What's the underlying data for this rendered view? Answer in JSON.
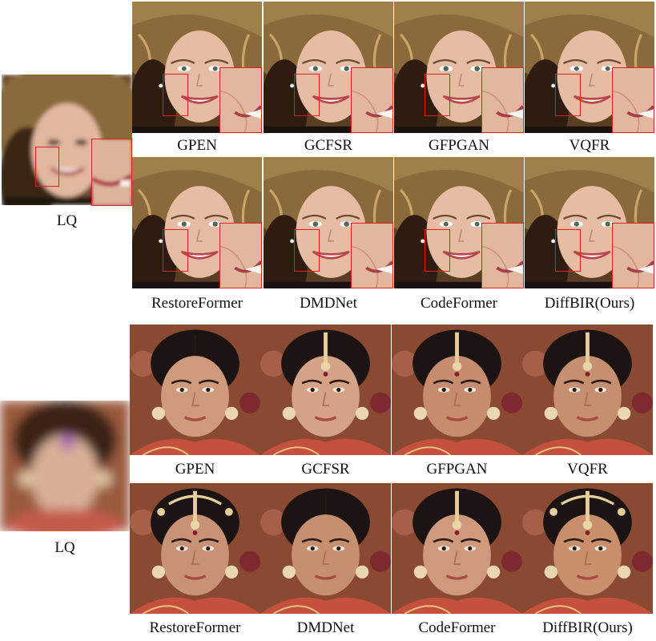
{
  "figure1": {
    "lq_label": "LQ",
    "methods_row1": [
      "GPEN",
      "GCFSR",
      "GFPGAN",
      "VQFR"
    ],
    "methods_row2": [
      "RestoreFormer",
      "DMDNet",
      "CodeFormer",
      "DiffBIR(Ours)"
    ]
  },
  "figure2": {
    "lq_label": "LQ",
    "methods_row1": [
      "GPEN",
      "GCFSR",
      "GFPGAN",
      "VQFR"
    ],
    "methods_row2": [
      "RestoreFormer",
      "DMDNet",
      "CodeFormer",
      "DiffBIR(Ours)"
    ]
  },
  "colors": {
    "zoom_box": "#e02020",
    "blonde_hair": "#8a6a3a",
    "blonde_skin": "#e3b89f",
    "dark_hair": "#1c1412",
    "tan_skin": "#c8906e",
    "background_warm": "#9a5a3c"
  }
}
